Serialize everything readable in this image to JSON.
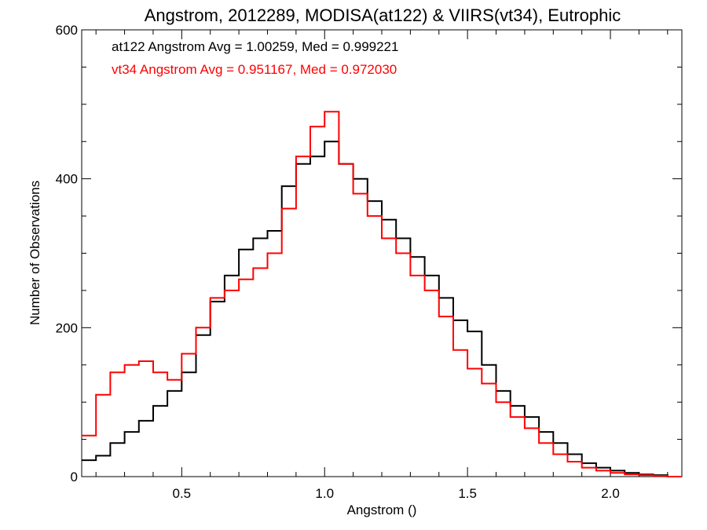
{
  "chart_data": {
    "type": "step",
    "title": "Angstrom, 2012289, MODISA(at122) & VIIRS(vt34), Eutrophic",
    "xlabel": "Angstrom ()",
    "ylabel": "Number of Observations",
    "xlim": [
      0.15,
      2.25
    ],
    "ylim": [
      0,
      600
    ],
    "x_ticks": [
      0.5,
      1.0,
      1.5,
      2.0
    ],
    "x_tick_labels": [
      "0.5",
      "1.0",
      "1.5",
      "2.0"
    ],
    "y_ticks": [
      0,
      200,
      400,
      600
    ],
    "y_tick_labels": [
      "0",
      "200",
      "400",
      "600"
    ],
    "grid": false,
    "annotations": [
      {
        "text": "at122 Angstrom Avg = 1.00259, Med = 0.999221",
        "color": "#000000"
      },
      {
        "text": "vt34 Angstrom Avg = 0.951167, Med = 0.972030",
        "color": "#ff0000"
      }
    ],
    "series": [
      {
        "id": "at122",
        "color": "#000000",
        "x": [
          0.15,
          0.2,
          0.25,
          0.3,
          0.35,
          0.4,
          0.45,
          0.5,
          0.55,
          0.6,
          0.65,
          0.7,
          0.75,
          0.8,
          0.85,
          0.9,
          0.95,
          1.0,
          1.05,
          1.1,
          1.15,
          1.2,
          1.25,
          1.3,
          1.35,
          1.4,
          1.45,
          1.5,
          1.55,
          1.6,
          1.65,
          1.7,
          1.75,
          1.8,
          1.85,
          1.9,
          1.95,
          2.0,
          2.05,
          2.1,
          2.15,
          2.2,
          2.25
        ],
        "values": [
          22,
          28,
          45,
          60,
          75,
          95,
          115,
          140,
          190,
          235,
          270,
          305,
          320,
          330,
          390,
          420,
          430,
          450,
          420,
          400,
          370,
          345,
          320,
          295,
          270,
          240,
          210,
          195,
          150,
          115,
          95,
          80,
          60,
          45,
          30,
          18,
          12,
          8,
          5,
          3,
          2,
          0,
          0
        ]
      },
      {
        "id": "vt34",
        "color": "#ff0000",
        "x": [
          0.15,
          0.2,
          0.25,
          0.3,
          0.35,
          0.4,
          0.45,
          0.5,
          0.55,
          0.6,
          0.65,
          0.7,
          0.75,
          0.8,
          0.85,
          0.9,
          0.95,
          1.0,
          1.05,
          1.1,
          1.15,
          1.2,
          1.25,
          1.3,
          1.35,
          1.4,
          1.45,
          1.5,
          1.55,
          1.6,
          1.65,
          1.7,
          1.75,
          1.8,
          1.85,
          1.9,
          1.95,
          2.0,
          2.05,
          2.1,
          2.15,
          2.2,
          2.25
        ],
        "values": [
          55,
          110,
          140,
          150,
          155,
          140,
          130,
          165,
          200,
          240,
          250,
          265,
          280,
          300,
          360,
          430,
          470,
          490,
          420,
          380,
          350,
          320,
          300,
          270,
          250,
          215,
          170,
          145,
          125,
          100,
          80,
          65,
          45,
          30,
          20,
          12,
          8,
          5,
          3,
          2,
          1,
          0,
          0
        ]
      }
    ]
  }
}
